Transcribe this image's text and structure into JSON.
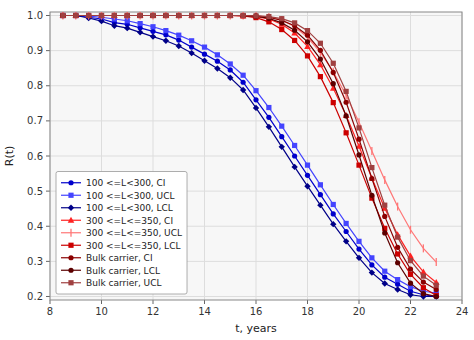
{
  "chart_data": {
    "type": "line",
    "xlabel": "t, years",
    "ylabel": "R(t)",
    "xlim": [
      8,
      24
    ],
    "ylim": [
      0.19,
      1.01
    ],
    "xticks": [
      8,
      10,
      12,
      14,
      16,
      18,
      20,
      22,
      24
    ],
    "yticks": [
      0.2,
      0.3,
      0.4,
      0.5,
      0.6,
      0.7,
      0.8,
      0.9,
      {
        "value": 1.0,
        "label": "1.0"
      }
    ],
    "grid": true,
    "legend": "lower left",
    "x": [
      8.5,
      9,
      9.5,
      10,
      10.5,
      11,
      11.5,
      12,
      12.5,
      13,
      13.5,
      14,
      14.5,
      15,
      15.5,
      16,
      16.5,
      17,
      17.5,
      18,
      18.5,
      19,
      19.5,
      20,
      20.5,
      21,
      21.5,
      22,
      22.5,
      23
    ],
    "series": [
      {
        "name": "100 <=L<300, CI",
        "color": "#0000CC",
        "marker": "circle",
        "values": [
          1.0,
          1.0,
          0.995,
          0.99,
          0.98,
          0.975,
          0.965,
          0.955,
          0.945,
          0.93,
          0.91,
          0.89,
          0.87,
          0.845,
          0.81,
          0.76,
          0.71,
          0.655,
          0.6,
          0.545,
          0.49,
          0.435,
          0.385,
          0.335,
          0.29,
          0.255,
          0.235,
          0.215,
          0.205,
          0.2
        ]
      },
      {
        "name": "100 <=L<300, UCL",
        "color": "#4444FF",
        "marker": "square",
        "values": [
          1.0,
          1.0,
          0.998,
          0.995,
          0.99,
          0.985,
          0.977,
          0.968,
          0.957,
          0.944,
          0.928,
          0.91,
          0.888,
          0.862,
          0.83,
          0.786,
          0.738,
          0.685,
          0.63,
          0.574,
          0.518,
          0.462,
          0.408,
          0.357,
          0.31,
          0.272,
          0.248,
          0.228,
          0.215,
          0.21
        ]
      },
      {
        "name": "100 <=L<300, LCL",
        "color": "#000088",
        "marker": "diamond",
        "values": [
          1.0,
          1.0,
          0.993,
          0.984,
          0.971,
          0.964,
          0.952,
          0.94,
          0.928,
          0.913,
          0.893,
          0.871,
          0.849,
          0.823,
          0.788,
          0.737,
          0.683,
          0.626,
          0.569,
          0.514,
          0.46,
          0.406,
          0.357,
          0.31,
          0.268,
          0.237,
          0.22,
          0.205,
          0.2,
          0.2
        ]
      },
      {
        "name": "300 <=L<=350, CI",
        "color": "#FF2222",
        "marker": "triangle",
        "values": [
          1.0,
          1.0,
          1.0,
          1.0,
          1.0,
          1.0,
          1.0,
          1.0,
          1.0,
          1.0,
          1.0,
          1.0,
          1.0,
          1.0,
          0.999,
          0.997,
          0.99,
          0.975,
          0.95,
          0.912,
          0.86,
          0.793,
          0.715,
          0.628,
          0.537,
          0.451,
          0.376,
          0.315,
          0.27,
          0.24
        ]
      },
      {
        "name": "300 <=L<=350, UCL",
        "color": "#FF7777",
        "marker": "vline",
        "values": [
          1.0,
          1.0,
          1.0,
          1.0,
          1.0,
          1.0,
          1.0,
          1.0,
          1.0,
          1.0,
          1.0,
          1.0,
          1.0,
          1.0,
          1.0,
          0.999,
          0.996,
          0.987,
          0.968,
          0.938,
          0.895,
          0.84,
          0.773,
          0.696,
          0.614,
          0.532,
          0.456,
          0.39,
          0.337,
          0.298
        ]
      },
      {
        "name": "300 <=L<=350, LCL",
        "color": "#CC0000",
        "marker": "square",
        "values": [
          1.0,
          1.0,
          1.0,
          1.0,
          1.0,
          1.0,
          1.0,
          1.0,
          1.0,
          1.0,
          1.0,
          1.0,
          1.0,
          1.0,
          0.999,
          0.994,
          0.982,
          0.96,
          0.929,
          0.885,
          0.826,
          0.752,
          0.666,
          0.574,
          0.48,
          0.394,
          0.321,
          0.263,
          0.225,
          0.203
        ]
      },
      {
        "name": "Bulk carrier, CI",
        "color": "#8B0000",
        "marker": "circle",
        "values": [
          1.0,
          1.0,
          1.0,
          1.0,
          1.0,
          1.0,
          1.0,
          1.0,
          1.0,
          1.0,
          1.0,
          1.0,
          1.0,
          1.0,
          1.0,
          0.999,
          0.995,
          0.986,
          0.971,
          0.944,
          0.901,
          0.838,
          0.753,
          0.648,
          0.536,
          0.428,
          0.34,
          0.278,
          0.241,
          0.22
        ]
      },
      {
        "name": "Bulk carrier, LCL",
        "color": "#5C0000",
        "marker": "circle",
        "values": [
          1.0,
          1.0,
          1.0,
          1.0,
          1.0,
          1.0,
          1.0,
          1.0,
          1.0,
          1.0,
          1.0,
          1.0,
          1.0,
          1.0,
          1.0,
          0.998,
          0.992,
          0.979,
          0.958,
          0.925,
          0.876,
          0.806,
          0.714,
          0.603,
          0.488,
          0.381,
          0.296,
          0.238,
          0.208,
          0.2
        ]
      },
      {
        "name": "Bulk carrier, UCL",
        "color": "#A04040",
        "marker": "square",
        "values": [
          1.0,
          1.0,
          1.0,
          1.0,
          1.0,
          1.0,
          1.0,
          1.0,
          1.0,
          1.0,
          1.0,
          1.0,
          1.0,
          1.0,
          1.0,
          0.999,
          0.997,
          0.991,
          0.979,
          0.957,
          0.921,
          0.864,
          0.784,
          0.68,
          0.567,
          0.46,
          0.369,
          0.302,
          0.258,
          0.232
        ]
      }
    ]
  }
}
